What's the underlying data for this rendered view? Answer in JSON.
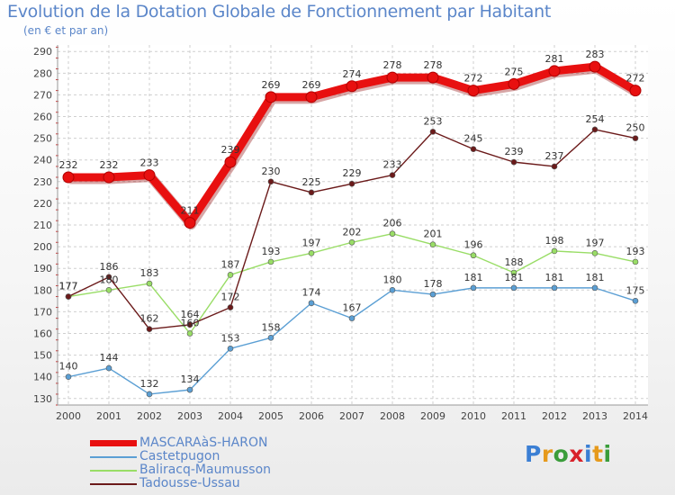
{
  "header": {
    "title": "Evolution de la Dotation Globale de Fonctionnement par Habitant",
    "subtitle": "(en € et par an)"
  },
  "logo": {
    "text": "Proxiti",
    "letters": [
      "P",
      "r",
      "o",
      "x",
      "i",
      "t",
      "i"
    ],
    "colors": [
      "#3b7fd4",
      "#e69a1c",
      "#3a9d3a",
      "#d8222a",
      "#3b7fd4",
      "#e69a1c",
      "#3a9d3a"
    ]
  },
  "chart_data": {
    "type": "line",
    "title": "Evolution de la Dotation Globale de Fonctionnement par Habitant",
    "subtitle": "(en € et par an)",
    "x": [
      "2000",
      "2001",
      "2002",
      "2003",
      "2004",
      "2005",
      "2006",
      "2007",
      "2008",
      "2009",
      "2010",
      "2011",
      "2012",
      "2013",
      "2014"
    ],
    "yticks": [
      130,
      140,
      150,
      160,
      170,
      180,
      190,
      200,
      210,
      220,
      230,
      240,
      250,
      260,
      270,
      280,
      290
    ],
    "ylim": [
      127,
      293
    ],
    "grid": true,
    "legend_position": "bottom-left",
    "series": [
      {
        "name": "MASCARAàS-HARON",
        "color": "#e81010",
        "values": [
          232,
          232,
          233,
          211,
          239,
          269,
          269,
          274,
          278,
          278,
          272,
          275,
          281,
          283,
          272
        ],
        "labels": [
          "232",
          "232",
          "233",
          "211",
          "239",
          "269",
          "269",
          "274",
          "278",
          "278",
          "272",
          "275",
          "281",
          "283",
          "272"
        ]
      },
      {
        "name": "Castetpugon",
        "color": "#5b9fd4",
        "values": [
          140,
          144,
          132,
          134,
          153,
          158,
          174,
          167,
          180,
          178,
          181,
          181,
          181,
          181,
          175
        ],
        "labels": [
          "140",
          "144",
          "132",
          "134",
          "153",
          "158",
          "174",
          "167",
          "180",
          "178",
          "181",
          "181",
          "181",
          "181",
          "175"
        ]
      },
      {
        "name": "Baliracq-Maumusson",
        "color": "#99dd66",
        "values": [
          177,
          180,
          183,
          160,
          187,
          193,
          197,
          202,
          206,
          201,
          196,
          188,
          198,
          197,
          193
        ],
        "labels": [
          "177",
          "180",
          "183",
          "160",
          "187",
          "193",
          "197",
          "202",
          "206",
          "201",
          "196",
          "188",
          "198",
          "197",
          "193"
        ]
      },
      {
        "name": "Tadousse-Ussau",
        "color": "#6b1a1a",
        "values": [
          177,
          186,
          162,
          164,
          172,
          230,
          225,
          229,
          233,
          253,
          245,
          239,
          237,
          254,
          250
        ],
        "labels": [
          "177",
          "186",
          "162",
          "164",
          "172",
          "230",
          "225",
          "229",
          "233",
          "253",
          "245",
          "239",
          "237",
          "254",
          "250"
        ]
      }
    ]
  }
}
